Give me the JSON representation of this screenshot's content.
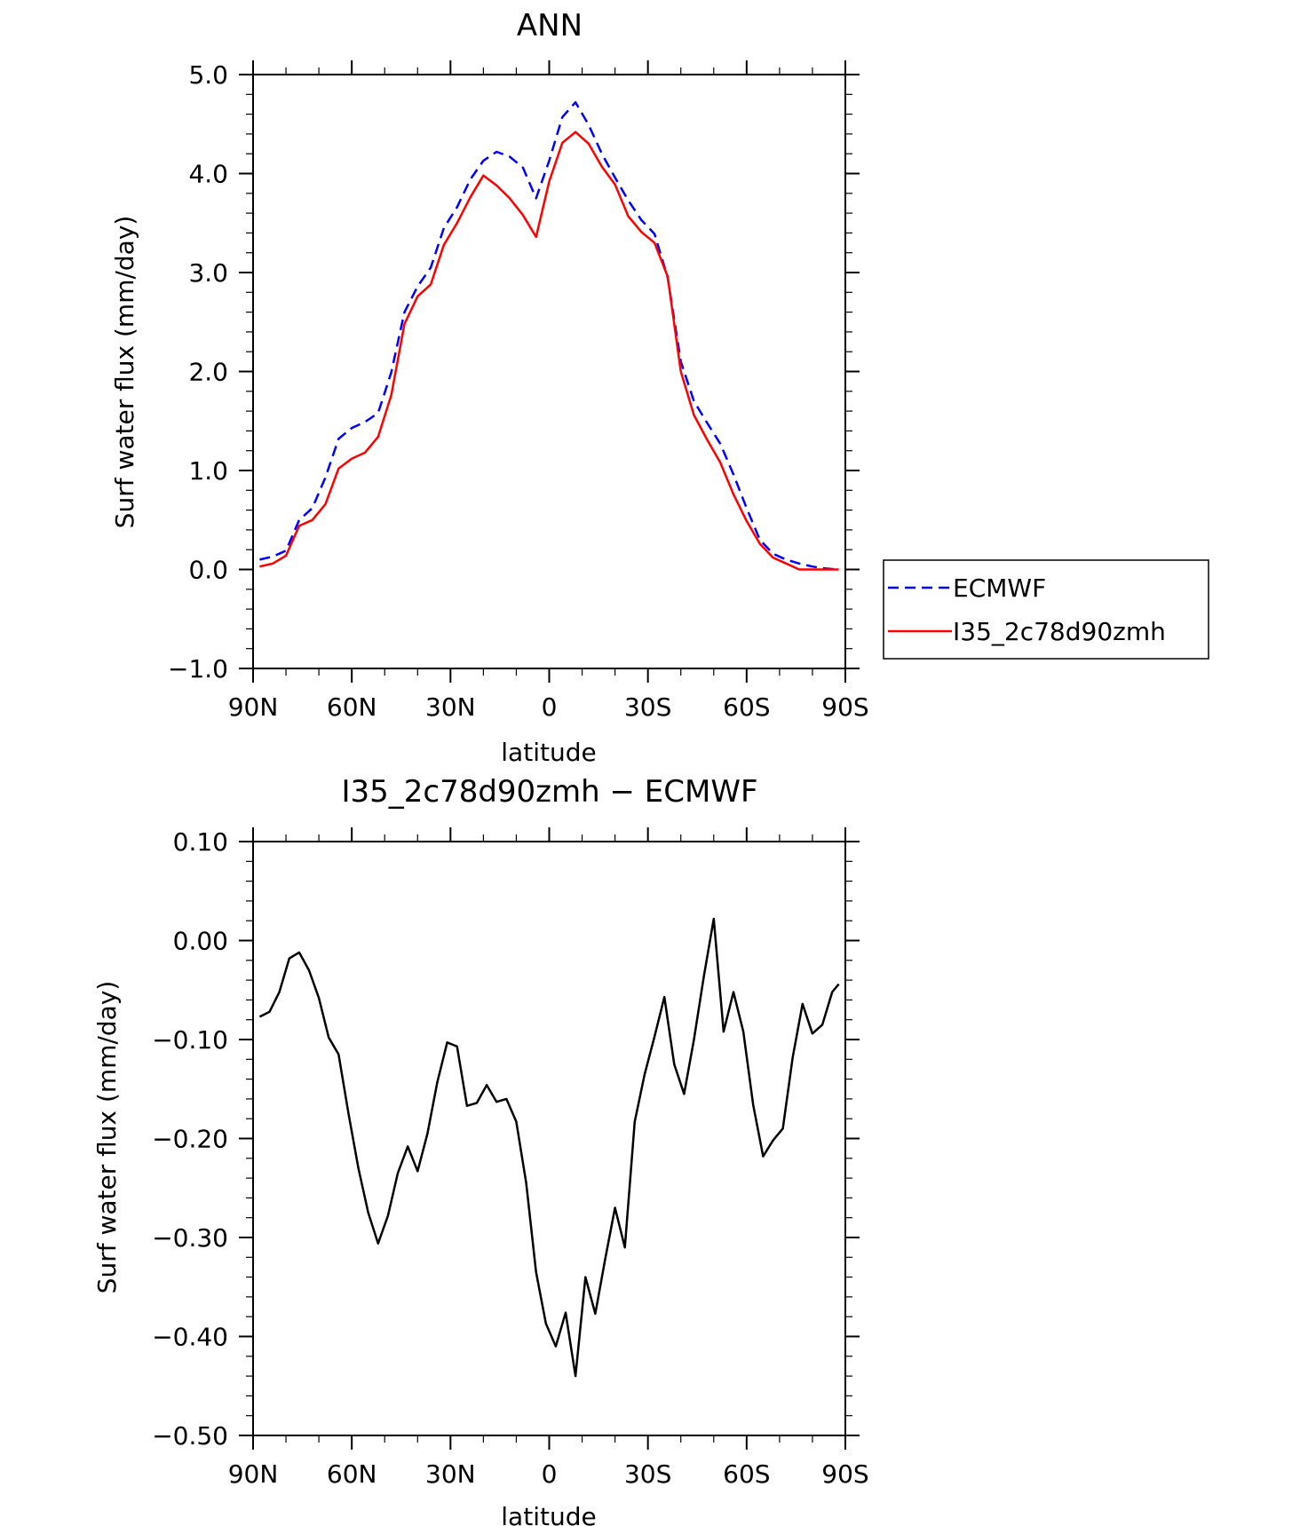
{
  "chart_data": [
    {
      "type": "line",
      "title": "ANN",
      "xlabel": "latitude",
      "ylabel": "Surf water flux (mm/day)",
      "xlim": [
        90,
        -90
      ],
      "ylim": [
        -1.0,
        5.0
      ],
      "grid": false,
      "legend_position": "right",
      "x_ticks": [
        "90N",
        "60N",
        "30N",
        "0",
        "30S",
        "60S",
        "90S"
      ],
      "y_ticks": [
        "−1.0",
        "0.0",
        "1.0",
        "2.0",
        "3.0",
        "4.0",
        "5.0"
      ],
      "x": [
        88,
        84,
        80,
        76,
        72,
        68,
        64,
        60,
        56,
        52,
        48,
        44,
        40,
        36,
        32,
        28,
        24,
        20,
        16,
        12,
        8,
        4,
        0,
        -4,
        -8,
        -12,
        -16,
        -20,
        -24,
        -28,
        -32,
        -36,
        -40,
        -44,
        -48,
        -52,
        -56,
        -60,
        -64,
        -68,
        -72,
        -76,
        -80,
        -84,
        -88
      ],
      "series": [
        {
          "name": "ECMWF",
          "color": "#0000ff",
          "style": "dashed",
          "values": [
            0.1,
            0.13,
            0.19,
            0.5,
            0.62,
            0.93,
            1.32,
            1.43,
            1.49,
            1.58,
            1.99,
            2.6,
            2.86,
            3.05,
            3.45,
            3.66,
            3.94,
            4.13,
            4.22,
            4.17,
            4.06,
            3.75,
            4.13,
            4.57,
            4.72,
            4.49,
            4.2,
            3.96,
            3.73,
            3.53,
            3.39,
            2.95,
            2.1,
            1.7,
            1.48,
            1.27,
            0.96,
            0.62,
            0.3,
            0.16,
            0.1,
            0.06,
            0.03,
            0.01,
            0.0
          ]
        },
        {
          "name": "I35_2c78d90zmh",
          "color": "#ff0000",
          "style": "solid",
          "values": [
            0.03,
            0.06,
            0.14,
            0.44,
            0.5,
            0.66,
            1.02,
            1.12,
            1.18,
            1.34,
            1.76,
            2.48,
            2.76,
            2.88,
            3.28,
            3.5,
            3.76,
            3.98,
            3.88,
            3.75,
            3.58,
            3.36,
            3.92,
            4.31,
            4.42,
            4.3,
            4.07,
            3.89,
            3.57,
            3.41,
            3.3,
            2.96,
            2.0,
            1.56,
            1.31,
            1.08,
            0.76,
            0.49,
            0.26,
            0.12,
            0.06,
            0.0,
            0.0,
            0.0,
            0.0
          ]
        }
      ]
    },
    {
      "type": "line",
      "title": "I35_2c78d90zmh − ECMWF",
      "xlabel": "latitude",
      "ylabel": "Surf water flux (mm/day)",
      "xlim": [
        90,
        -90
      ],
      "ylim": [
        -0.5,
        0.1
      ],
      "grid": false,
      "x_ticks": [
        "90N",
        "60N",
        "30N",
        "0",
        "30S",
        "60S",
        "90S"
      ],
      "y_ticks": [
        "−0.50",
        "−0.40",
        "−0.30",
        "−0.20",
        "−0.10",
        "0.00",
        "0.10"
      ],
      "x": [
        88,
        85,
        82,
        79,
        76,
        73,
        70,
        67,
        64,
        61,
        58,
        55,
        52,
        49,
        46,
        43,
        40,
        37,
        34,
        31,
        28,
        25,
        22,
        19,
        16,
        13,
        10,
        7,
        4,
        1,
        -2,
        -5,
        -8,
        -11,
        -14,
        -17,
        -20,
        -23,
        -26,
        -29,
        -32,
        -35,
        -38,
        -41,
        -44,
        -47,
        -50,
        -53,
        -56,
        -59,
        -62,
        -65,
        -68,
        -71,
        -74,
        -77,
        -80,
        -83,
        -86,
        -88
      ],
      "series": [
        {
          "name": "",
          "color": "#000000",
          "style": "solid",
          "values": [
            -0.077,
            -0.072,
            -0.052,
            -0.018,
            -0.012,
            -0.03,
            -0.058,
            -0.098,
            -0.115,
            -0.175,
            -0.23,
            -0.275,
            -0.306,
            -0.278,
            -0.235,
            -0.208,
            -0.233,
            -0.195,
            -0.143,
            -0.103,
            -0.107,
            -0.167,
            -0.164,
            -0.146,
            -0.163,
            -0.16,
            -0.183,
            -0.245,
            -0.335,
            -0.387,
            -0.41,
            -0.376,
            -0.44,
            -0.34,
            -0.377,
            -0.322,
            -0.27,
            -0.31,
            -0.183,
            -0.135,
            -0.097,
            -0.057,
            -0.125,
            -0.155,
            -0.1,
            -0.036,
            0.022,
            -0.092,
            -0.052,
            -0.092,
            -0.166,
            -0.218,
            -0.202,
            -0.19,
            -0.118,
            -0.064,
            -0.094,
            -0.085,
            -0.052,
            -0.044
          ]
        }
      ]
    }
  ]
}
